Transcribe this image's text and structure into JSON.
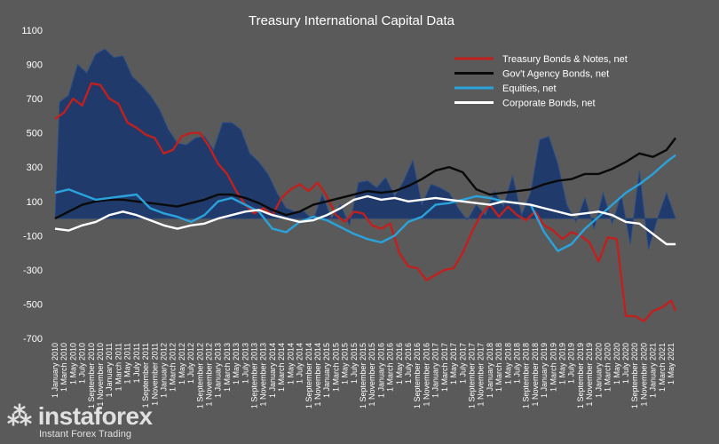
{
  "chart_data": {
    "type": "line",
    "title": "Treasury International Capital Data",
    "ylim": [
      -700,
      1100
    ],
    "yticks": [
      1100,
      900,
      700,
      500,
      300,
      100,
      -100,
      -300,
      -500,
      -700
    ],
    "x_tick_labels": [
      "1 January 2010",
      "1 March 2010",
      "1 May 2010",
      "1 July 2010",
      "1 September 2010",
      "1 November 2010",
      "1 January 2011",
      "1 March 2011",
      "1 May 2011",
      "1 July 2011",
      "1 September 2011",
      "1 November 2011",
      "1 January 2012",
      "1 March 2012",
      "1 May 2012",
      "1 July 2012",
      "1 September 2012",
      "1 November 2012",
      "1 January 2013",
      "1 March 2013",
      "1 May 2013",
      "1 July 2013",
      "1 September 2013",
      "1 November 2013",
      "1 January 2014",
      "1 March 2014",
      "1 May 2014",
      "1 July 2014",
      "1 September 2014",
      "1 November 2014",
      "1 January 2015",
      "1 March 2015",
      "1 May 2015",
      "1 July 2015",
      "1 September 2015",
      "1 November 2015",
      "1 January 2016",
      "1 March 2016",
      "1 May 2016",
      "1 July 2016",
      "1 September 2016",
      "1 November 2016",
      "1 January 2017",
      "1 March 2017",
      "1 May 2017",
      "1 July 2017",
      "1 September 2017",
      "1 November 2017",
      "1 January 2018",
      "1 March 2018",
      "1 May 2018",
      "1 July 2018",
      "1 September 2018",
      "1 November 2018",
      "1 January 2019",
      "1 March 2019",
      "1 May 2019",
      "1 July 2019",
      "1 September 2019",
      "1 November 2019",
      "1 January 2020",
      "1 March 2020",
      "1 May 2020",
      "1 July 2020",
      "1 September 2020",
      "1 November 2020",
      "1 January 2021",
      "1 March 2021",
      "1 May 2021"
    ],
    "area": {
      "color": "#1f3a6b",
      "x": [
        0,
        1,
        3,
        5,
        7,
        9,
        11,
        13,
        15,
        17,
        19,
        21,
        23,
        25,
        27,
        29,
        31,
        33,
        35,
        37,
        39,
        41,
        43,
        45,
        47,
        49,
        51,
        53,
        55,
        57,
        59,
        61,
        63,
        65,
        67,
        69,
        71,
        73,
        75,
        77,
        79,
        81,
        83,
        85,
        87,
        89,
        91,
        93,
        95,
        97,
        99,
        101,
        103,
        105,
        107,
        109,
        111,
        113,
        115,
        117,
        119,
        121,
        123,
        125,
        127,
        129,
        131,
        133,
        135,
        137
      ],
      "values": [
        0,
        680,
        720,
        900,
        850,
        960,
        990,
        940,
        950,
        830,
        780,
        720,
        640,
        520,
        440,
        430,
        470,
        480,
        400,
        560,
        560,
        520,
        380,
        330,
        260,
        150,
        60,
        40,
        40,
        -10,
        140,
        0,
        80,
        -40,
        210,
        220,
        180,
        240,
        130,
        220,
        340,
        80,
        200,
        180,
        150,
        60,
        -10,
        80,
        20,
        160,
        70,
        250,
        20,
        150,
        460,
        480,
        320,
        80,
        -20,
        120,
        -60,
        150,
        -30,
        140,
        -150,
        280,
        -180,
        0,
        150,
        0
      ]
    },
    "series": [
      {
        "name": "Treasury Bonds & Notes, net",
        "color": "#c0201e",
        "x": [
          0,
          2,
          4,
          6,
          8,
          10,
          12,
          14,
          16,
          18,
          20,
          22,
          24,
          26,
          28,
          30,
          32,
          34,
          36,
          38,
          40,
          42,
          44,
          46,
          48,
          50,
          52,
          54,
          56,
          58,
          60,
          62,
          64,
          66,
          68,
          70,
          72,
          74,
          76,
          78,
          80,
          82,
          84,
          86,
          88,
          90,
          92,
          94,
          96,
          98,
          100,
          102,
          104,
          106,
          108,
          110,
          112,
          114,
          116,
          118,
          120,
          122,
          124,
          126,
          128,
          130,
          132,
          134,
          136,
          137
        ],
        "values": [
          580,
          620,
          700,
          660,
          790,
          780,
          700,
          670,
          560,
          530,
          490,
          470,
          380,
          400,
          480,
          500,
          500,
          420,
          320,
          260,
          160,
          80,
          30,
          60,
          20,
          120,
          170,
          200,
          160,
          210,
          130,
          20,
          -20,
          40,
          30,
          -40,
          -60,
          -30,
          -200,
          -280,
          -290,
          -360,
          -330,
          -300,
          -290,
          -200,
          -80,
          20,
          80,
          10,
          70,
          20,
          -10,
          40,
          -40,
          -70,
          -120,
          -80,
          -100,
          -140,
          -250,
          -110,
          -120,
          -570,
          -570,
          -600,
          -540,
          -520,
          -480,
          -540
        ]
      },
      {
        "name": "Gov't Agency Bonds, net",
        "color": "#0a0a0a",
        "x": [
          0,
          3,
          6,
          9,
          12,
          15,
          18,
          21,
          24,
          27,
          30,
          33,
          36,
          39,
          42,
          45,
          48,
          51,
          54,
          57,
          60,
          63,
          66,
          69,
          72,
          75,
          78,
          81,
          84,
          87,
          90,
          93,
          96,
          99,
          102,
          105,
          108,
          111,
          114,
          117,
          120,
          123,
          126,
          129,
          132,
          135,
          137
        ],
        "values": [
          0,
          40,
          80,
          100,
          110,
          110,
          100,
          90,
          80,
          70,
          90,
          110,
          140,
          140,
          120,
          90,
          50,
          20,
          40,
          80,
          100,
          120,
          140,
          160,
          150,
          160,
          190,
          230,
          280,
          300,
          270,
          170,
          140,
          150,
          160,
          170,
          200,
          220,
          230,
          260,
          260,
          290,
          330,
          380,
          360,
          400,
          470
        ]
      },
      {
        "name": "Equities, net",
        "color": "#2aa3dd",
        "x": [
          0,
          3,
          6,
          9,
          12,
          15,
          18,
          21,
          24,
          27,
          30,
          33,
          36,
          39,
          42,
          45,
          48,
          51,
          54,
          57,
          60,
          63,
          66,
          69,
          72,
          75,
          78,
          81,
          84,
          87,
          90,
          93,
          96,
          99,
          102,
          105,
          108,
          111,
          114,
          117,
          120,
          123,
          126,
          129,
          132,
          135,
          137
        ],
        "values": [
          150,
          170,
          140,
          110,
          120,
          130,
          140,
          60,
          30,
          10,
          -20,
          20,
          100,
          120,
          80,
          40,
          -60,
          -80,
          -20,
          10,
          -10,
          -50,
          -90,
          -120,
          -140,
          -100,
          -20,
          10,
          80,
          90,
          110,
          130,
          120,
          100,
          90,
          80,
          -80,
          -190,
          -150,
          -60,
          10,
          80,
          150,
          200,
          260,
          330,
          370
        ]
      },
      {
        "name": "Corporate Bonds, net",
        "color": "#ffffff",
        "x": [
          0,
          3,
          6,
          9,
          12,
          15,
          18,
          21,
          24,
          27,
          30,
          33,
          36,
          39,
          42,
          45,
          48,
          51,
          54,
          57,
          60,
          63,
          66,
          69,
          72,
          75,
          78,
          81,
          84,
          87,
          90,
          93,
          96,
          99,
          102,
          105,
          108,
          111,
          114,
          117,
          120,
          123,
          126,
          129,
          132,
          135,
          137
        ],
        "values": [
          -60,
          -70,
          -40,
          -20,
          20,
          40,
          20,
          -10,
          -40,
          -60,
          -40,
          -30,
          0,
          20,
          40,
          50,
          20,
          0,
          -20,
          -10,
          20,
          60,
          110,
          130,
          110,
          120,
          100,
          110,
          120,
          110,
          100,
          90,
          80,
          100,
          90,
          80,
          60,
          40,
          20,
          30,
          40,
          20,
          -20,
          -30,
          -90,
          -150,
          -150
        ]
      }
    ],
    "legend_position": "top-right",
    "grid": false
  }
}
